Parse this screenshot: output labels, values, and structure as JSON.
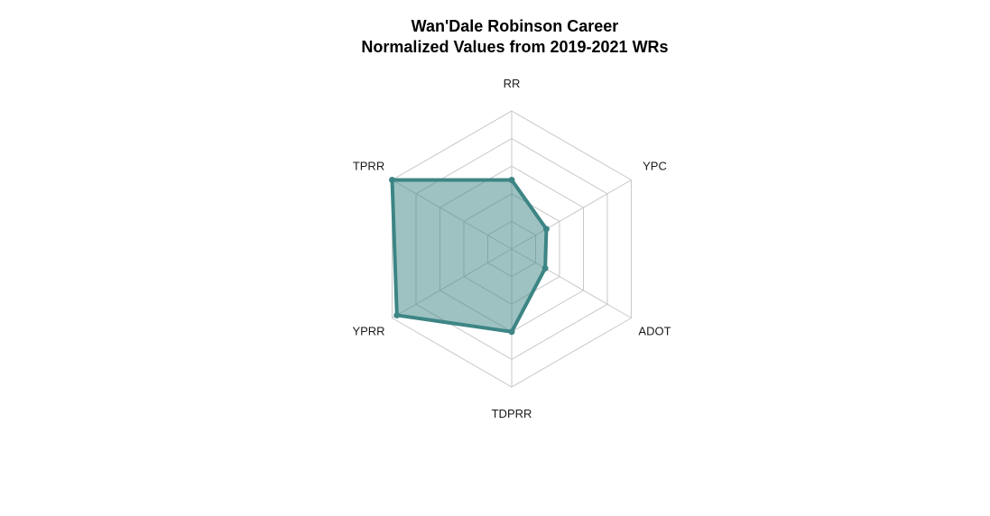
{
  "title": {
    "line1": "Wan'Dale Robinson Career",
    "line2": "Normalized Values from 2019-2021 WRs"
  },
  "colors": {
    "series_line": "#3d8585",
    "series_fill": "#3d8585",
    "series_fill_opacity": 0.5,
    "grid": "#c8c8c8",
    "text": "#1a1a1a"
  },
  "chart_data": {
    "type": "radar",
    "title": "Wan'Dale Robinson Career Normalized Values from 2019-2021 WRs",
    "axes": [
      "RR",
      "YPC",
      "ADOT",
      "TDPRR",
      "YPRR",
      "TPRR"
    ],
    "range": [
      0,
      1
    ],
    "grid_levels": 5,
    "grid": true,
    "legend": "none",
    "series": [
      {
        "values": [
          0.5,
          0.29,
          0.28,
          0.6,
          0.96,
          1.0
        ]
      }
    ]
  }
}
